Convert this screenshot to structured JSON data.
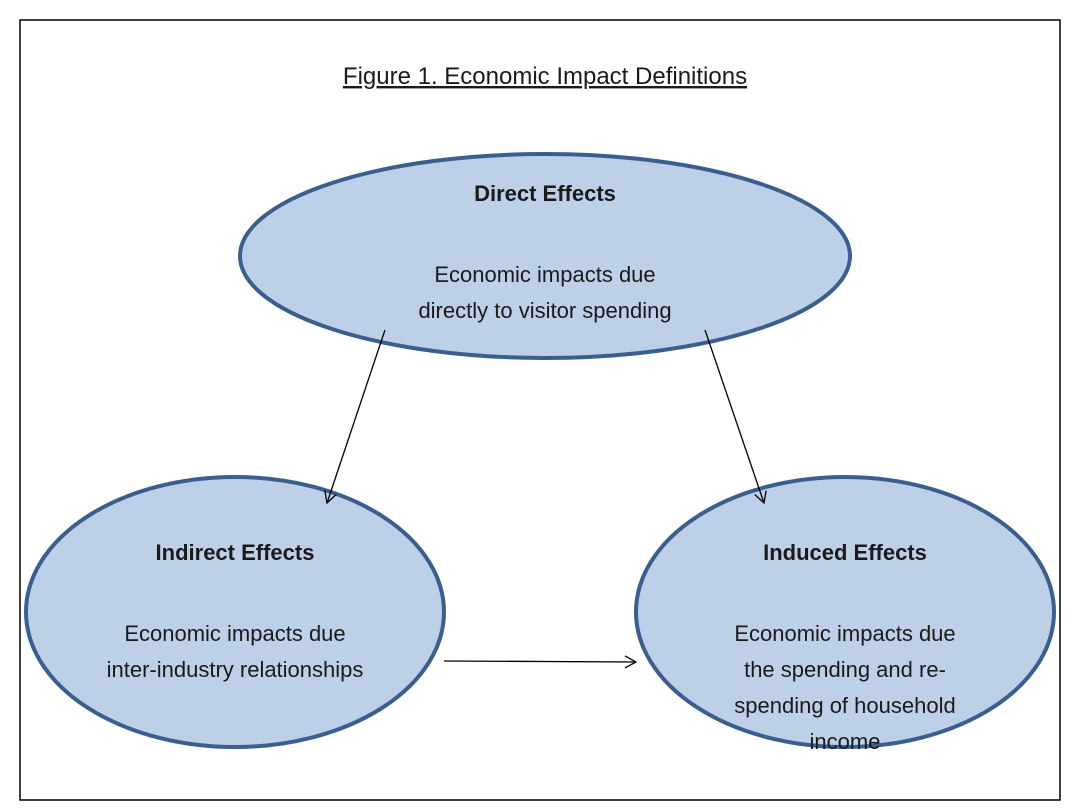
{
  "title": "Figure 1. Economic Impact Definitions",
  "nodes": [
    {
      "label": "Direct Effects",
      "lines": [
        "Economic impacts due",
        "directly to visitor spending"
      ]
    },
    {
      "label": "Indirect Effects",
      "lines": [
        "Economic impacts due",
        "inter-industry relationships"
      ]
    },
    {
      "label": "Induced Effects",
      "lines": [
        "Economic impacts due",
        "the spending and re-",
        "spending of household",
        "income"
      ]
    }
  ]
}
